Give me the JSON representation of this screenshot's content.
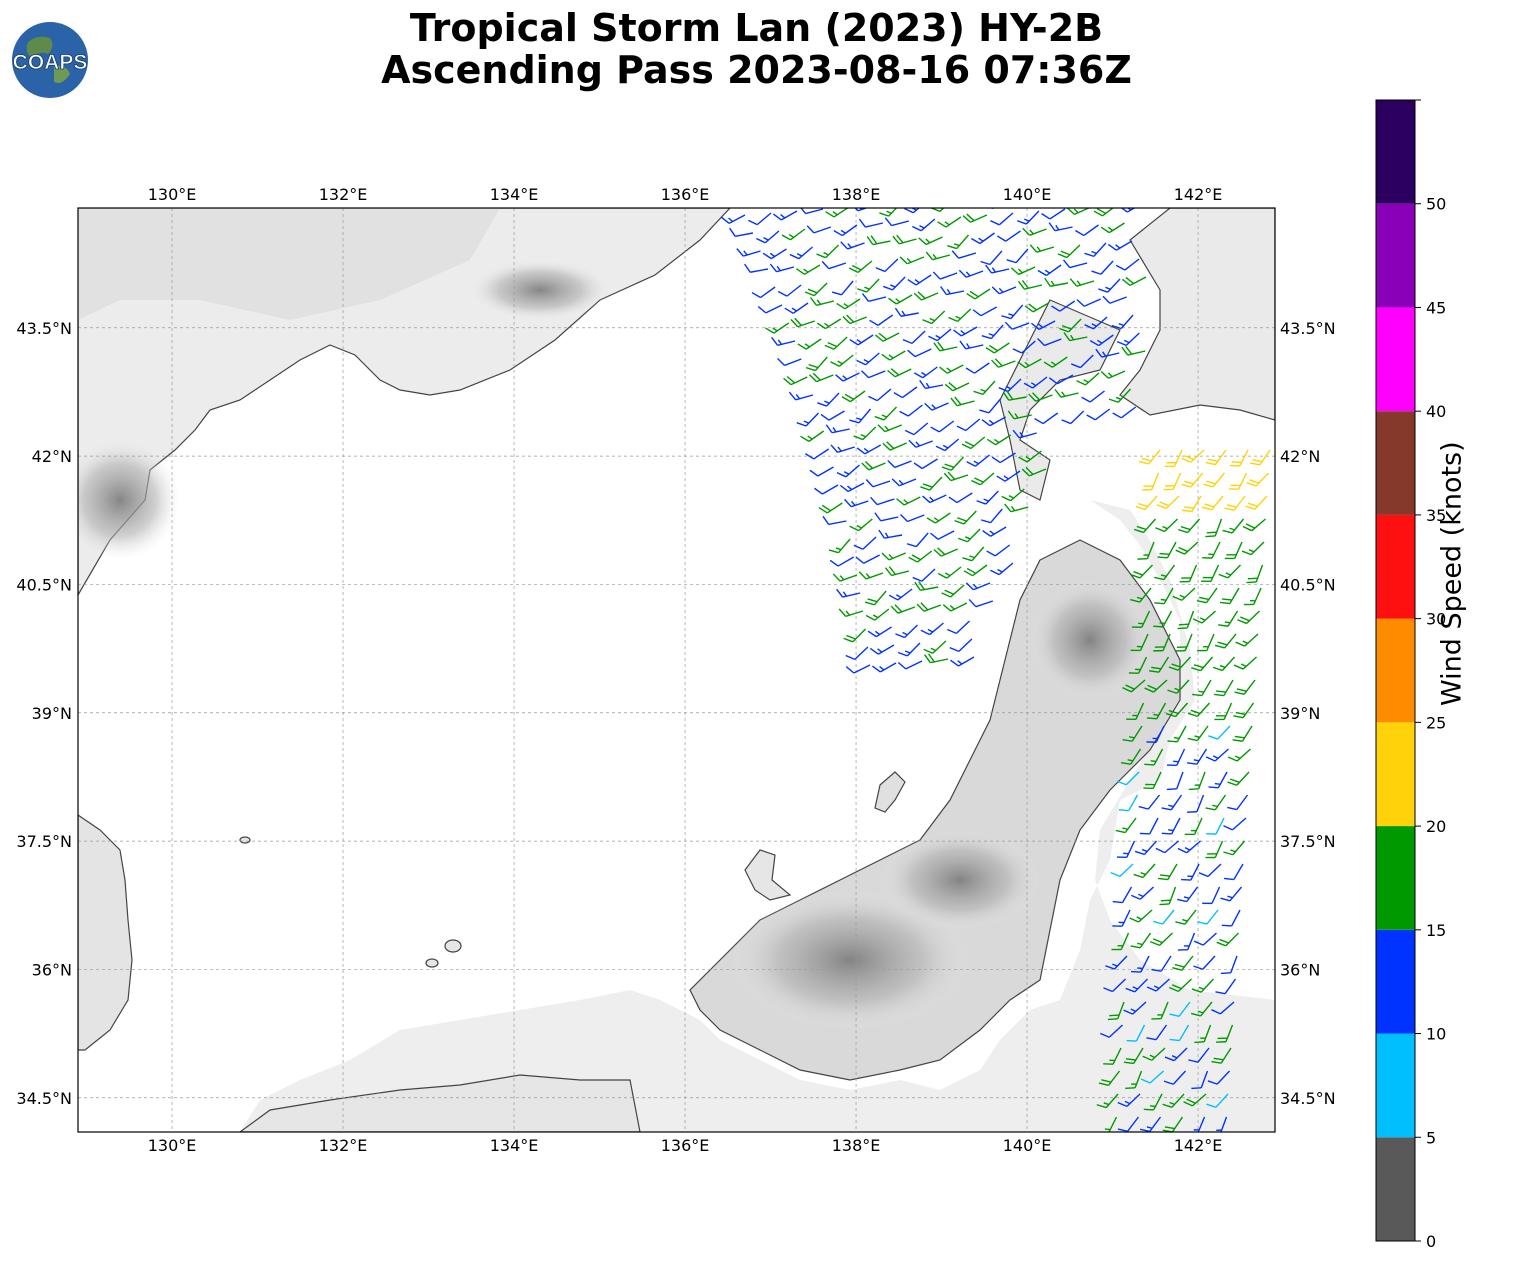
{
  "title": {
    "line1": "Tropical Storm Lan (2023) HY-2B",
    "line2": "Ascending Pass 2023-08-16 07:36Z"
  },
  "logo": {
    "text": "COAPS",
    "icon": "globe-logo-icon"
  },
  "map": {
    "lon_range": [
      128.9,
      142.9
    ],
    "lat_range": [
      34.1,
      44.9
    ],
    "lon_ticks": [
      "130°E",
      "132°E",
      "134°E",
      "136°E",
      "138°E",
      "140°E",
      "142°E"
    ],
    "lat_ticks": [
      "34.5°N",
      "36°N",
      "37.5°N",
      "39°N",
      "40.5°N",
      "42°N",
      "43.5°N"
    ],
    "gridlines": true,
    "background": "grayscale terrain with coastlines"
  },
  "colorbar": {
    "label": "Wind Speed (knots)",
    "ticks": [
      "0",
      "5",
      "10",
      "15",
      "20",
      "25",
      "30",
      "35",
      "40",
      "45",
      "50"
    ],
    "bins": [
      {
        "range": [
          0,
          5
        ],
        "color": "#595959"
      },
      {
        "range": [
          5,
          10
        ],
        "color": "#00bfff"
      },
      {
        "range": [
          10,
          15
        ],
        "color": "#0033ff"
      },
      {
        "range": [
          15,
          20
        ],
        "color": "#009900"
      },
      {
        "range": [
          20,
          25
        ],
        "color": "#ffd20a"
      },
      {
        "range": [
          25,
          30
        ],
        "color": "#ff8c00"
      },
      {
        "range": [
          30,
          35
        ],
        "color": "#ff1010"
      },
      {
        "range": [
          35,
          40
        ],
        "color": "#84392a"
      },
      {
        "range": [
          40,
          45
        ],
        "color": "#ff00ff"
      },
      {
        "range": [
          45,
          50
        ],
        "color": "#8a00b8"
      },
      {
        "range": [
          50,
          55
        ],
        "color": "#2b0060"
      }
    ]
  }
}
